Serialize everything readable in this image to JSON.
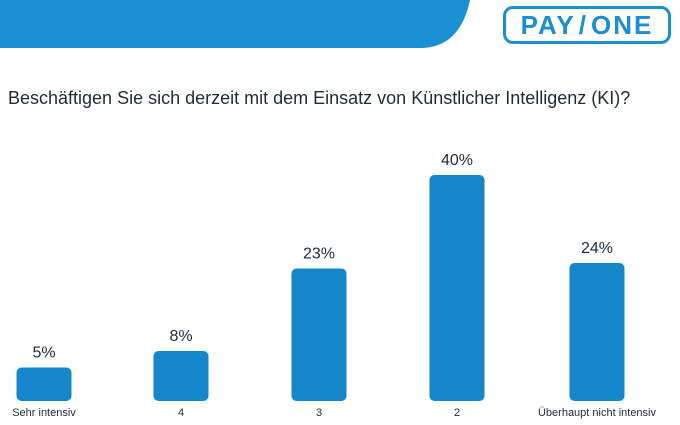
{
  "brand": {
    "logo_left": "PAY",
    "logo_right": "ONE",
    "primary_color": "#1486c9",
    "header_color": "#1a8fd1"
  },
  "chart_data": {
    "type": "bar",
    "title": "Beschäftigen Sie sich derzeit mit dem Einsatz von Künstlicher Intelligenz (KI)?",
    "categories": [
      "Sehr intensiv",
      "4",
      "3",
      "2",
      "Überhaupt nicht intensiv"
    ],
    "values": [
      5,
      8,
      23,
      40,
      24
    ],
    "value_labels": [
      "5%",
      "8%",
      "23%",
      "40%",
      "24%"
    ],
    "unit": "%",
    "ylim": [
      0,
      40
    ],
    "grid": false,
    "legend": "none"
  }
}
